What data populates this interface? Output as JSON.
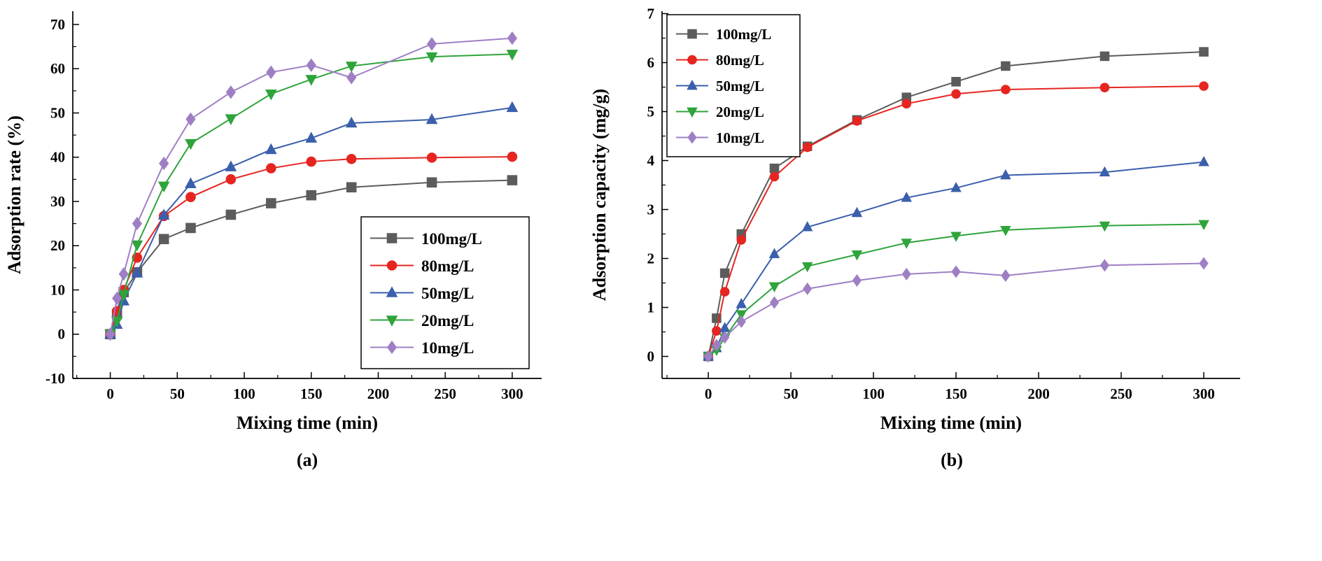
{
  "figure_title": "",
  "captions": {
    "a": "(a)",
    "b": "(b)"
  },
  "series_meta": [
    {
      "name": "100mg/L",
      "color": "#5c5c5c",
      "marker": "square"
    },
    {
      "name": "80mg/L",
      "color": "#e62520",
      "marker": "circle"
    },
    {
      "name": "50mg/L",
      "color": "#3a5fac",
      "marker": "triangle-up"
    },
    {
      "name": "20mg/L",
      "color": "#2fa43b",
      "marker": "triangle-down"
    },
    {
      "name": "10mg/L",
      "color": "#9f7fc4",
      "marker": "diamond"
    }
  ],
  "chart_data": [
    {
      "id": "a",
      "type": "line",
      "caption": "(a)",
      "title": "",
      "xlabel": "Mixing time (min)",
      "ylabel": "Adsorption rate (%)",
      "xlim": [
        -28,
        322
      ],
      "ylim": [
        -10,
        73
      ],
      "xticks": [
        0,
        50,
        100,
        150,
        200,
        250,
        300
      ],
      "yticks": [
        -10,
        0,
        10,
        20,
        30,
        40,
        50,
        60,
        70
      ],
      "grid": false,
      "legend_pos": "bottom-right",
      "x": [
        0,
        5,
        10,
        20,
        40,
        60,
        90,
        120,
        150,
        180,
        240,
        300
      ],
      "series": [
        {
          "name": "100mg/L",
          "values": [
            0,
            4.5,
            9.5,
            14.0,
            21.5,
            24.0,
            27.0,
            29.6,
            31.4,
            33.2,
            34.3,
            34.8
          ]
        },
        {
          "name": "80mg/L",
          "values": [
            0,
            5.2,
            10.0,
            17.3,
            26.7,
            31.0,
            35.0,
            37.5,
            39.0,
            39.6,
            39.9,
            40.1
          ]
        },
        {
          "name": "50mg/L",
          "values": [
            0,
            2.2,
            7.5,
            13.8,
            26.9,
            34.0,
            37.8,
            41.7,
            44.3,
            47.7,
            48.5,
            51.2
          ]
        },
        {
          "name": "20mg/L",
          "values": [
            0,
            3.0,
            9.0,
            20.2,
            33.5,
            43.1,
            48.7,
            54.3,
            57.6,
            60.6,
            62.7,
            63.3
          ]
        },
        {
          "name": "10mg/L",
          "values": [
            0,
            8.1,
            13.6,
            25.0,
            38.6,
            48.6,
            54.7,
            59.2,
            60.8,
            58.0,
            65.6,
            66.9
          ]
        }
      ]
    },
    {
      "id": "b",
      "type": "line",
      "caption": "(b)",
      "title": "",
      "xlabel": "Mixing time (min)",
      "ylabel": "Adsorption capacity (mg/g)",
      "xlim": [
        -28,
        322
      ],
      "ylim": [
        -0.45,
        7.05
      ],
      "xticks": [
        0,
        50,
        100,
        150,
        200,
        250,
        300
      ],
      "yticks": [
        0,
        1,
        2,
        3,
        4,
        5,
        6,
        7
      ],
      "grid": false,
      "legend_pos": "top-left",
      "x": [
        0,
        5,
        10,
        20,
        40,
        60,
        90,
        120,
        150,
        180,
        240,
        300
      ],
      "series": [
        {
          "name": "100mg/L",
          "values": [
            0,
            0.78,
            1.7,
            2.5,
            3.84,
            4.29,
            4.83,
            5.29,
            5.61,
            5.93,
            6.13,
            6.22
          ]
        },
        {
          "name": "80mg/L",
          "values": [
            0,
            0.52,
            1.32,
            2.38,
            3.67,
            4.27,
            4.81,
            5.16,
            5.36,
            5.45,
            5.49,
            5.52
          ]
        },
        {
          "name": "50mg/L",
          "values": [
            0,
            0.17,
            0.58,
            1.07,
            2.09,
            2.64,
            2.93,
            3.24,
            3.44,
            3.7,
            3.76,
            3.97
          ]
        },
        {
          "name": "20mg/L",
          "values": [
            0,
            0.13,
            0.38,
            0.86,
            1.43,
            1.84,
            2.08,
            2.32,
            2.46,
            2.58,
            2.67,
            2.7
          ]
        },
        {
          "name": "10mg/L",
          "values": [
            0,
            0.23,
            0.39,
            0.71,
            1.1,
            1.38,
            1.55,
            1.68,
            1.73,
            1.65,
            1.86,
            1.9
          ]
        }
      ]
    }
  ]
}
